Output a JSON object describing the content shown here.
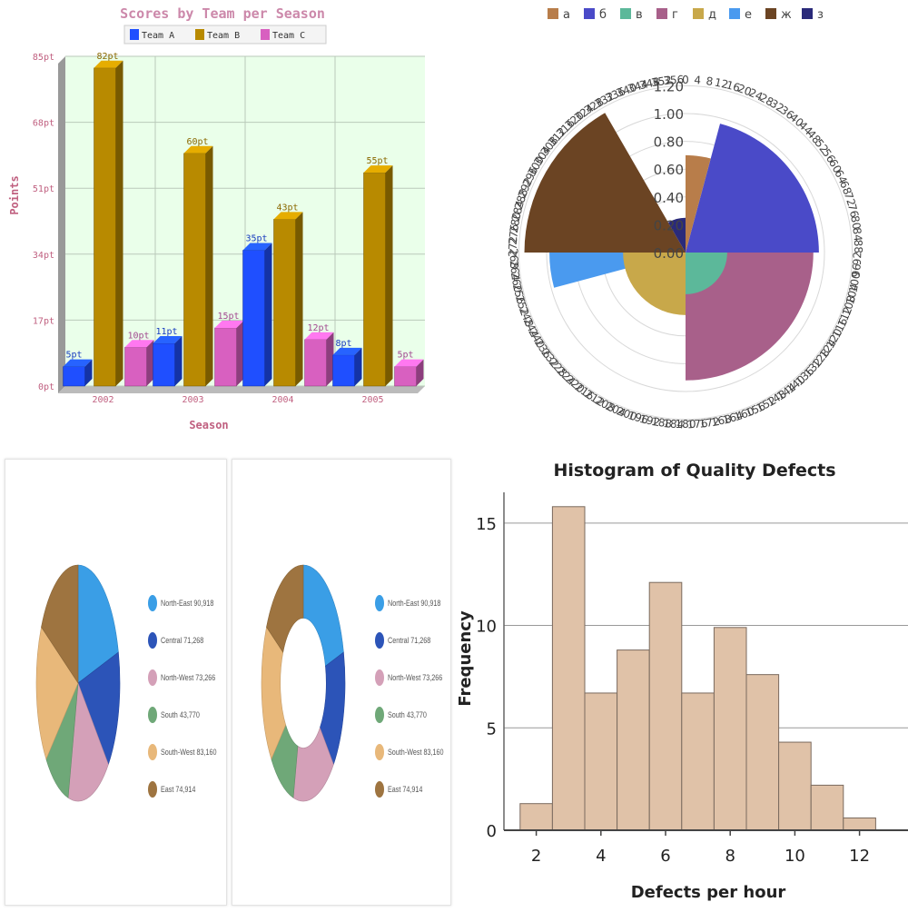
{
  "chart_data": [
    {
      "type": "bar",
      "title": "Scores by Team per Season",
      "xlabel": "Season",
      "ylabel": "Points",
      "categories": [
        "2002",
        "2003",
        "2004",
        "2005"
      ],
      "series": [
        {
          "name": "Team A",
          "color": "#1f4fff",
          "values": [
            5,
            11,
            35,
            8
          ],
          "labels": [
            "5pt",
            "11pt",
            "35pt",
            "8pt"
          ]
        },
        {
          "name": "Team B",
          "color": "#b88a00",
          "values": [
            82,
            60,
            43,
            55
          ],
          "labels": [
            "82pt",
            "60pt",
            "43pt",
            "55pt"
          ]
        },
        {
          "name": "Team C",
          "color": "#d860c0",
          "values": [
            10,
            15,
            12,
            5
          ],
          "labels": [
            "10pt",
            "15pt",
            "12pt",
            "5pt"
          ]
        }
      ],
      "ylim": [
        0,
        85
      ],
      "yticks": [
        {
          "value": 0,
          "label": "0pt"
        },
        {
          "value": 17,
          "label": "17pt"
        },
        {
          "value": 34,
          "label": "34pt"
        },
        {
          "value": 51,
          "label": "51pt"
        },
        {
          "value": 68,
          "label": "68pt"
        },
        {
          "value": 85,
          "label": "85pt"
        }
      ],
      "grid": true,
      "background": "#eaffea",
      "legend_position": "top"
    },
    {
      "type": "polar-bar",
      "title": "",
      "categories": [
        "а",
        "б",
        "в",
        "г",
        "д",
        "е",
        "ж",
        "з"
      ],
      "series": [
        {
          "name": "а",
          "color": "#b87d4a",
          "start_deg": 0,
          "end_deg": 15,
          "r": 0.7
        },
        {
          "name": "б",
          "color": "#4a4ac8",
          "start_deg": 15,
          "end_deg": 90,
          "r": 0.96
        },
        {
          "name": "в",
          "color": "#5cb89a",
          "start_deg": 90,
          "end_deg": 180,
          "r": 0.3
        },
        {
          "name": "г",
          "color": "#a8608a",
          "start_deg": 90,
          "end_deg": 180,
          "r": 0.92
        },
        {
          "name": "д",
          "color": "#c8a84a",
          "start_deg": 180,
          "end_deg": 270,
          "r": 0.45
        },
        {
          "name": "е",
          "color": "#4a9aef",
          "start_deg": 255,
          "end_deg": 270,
          "r": 0.98
        },
        {
          "name": "ж",
          "color": "#6b4423",
          "start_deg": 270,
          "end_deg": 330,
          "r": 1.16
        },
        {
          "name": "з",
          "color": "#2a2a7a",
          "start_deg": 330,
          "end_deg": 360,
          "r": 0.25
        }
      ],
      "radial_ticks": [
        "0.00",
        "0.20",
        "0.40",
        "0.60",
        "0.80",
        "1.00",
        "1.20"
      ],
      "angular_ticks_step_deg": 4,
      "legend_position": "top"
    },
    {
      "type": "pie",
      "title": "",
      "labels": [
        "North-East 90,918",
        "Central 71,268",
        "North-West 73,266",
        "South 43,770",
        "South-West 83,160",
        "East 74,914"
      ],
      "values": [
        90918,
        71268,
        73266,
        43770,
        83160,
        74914
      ],
      "colors": [
        "#3a9ee6",
        "#2c54b8",
        "#d4a0b8",
        "#6fa878",
        "#e8b87a",
        "#9e7440"
      ],
      "legend_position": "right"
    },
    {
      "type": "pie",
      "subtype": "donut",
      "title": "",
      "labels": [
        "North-East 90,918",
        "Central 71,268",
        "North-West 73,266",
        "South 43,770",
        "South-West 83,160",
        "East 74,914"
      ],
      "values": [
        90918,
        71268,
        73266,
        43770,
        83160,
        74914
      ],
      "colors": [
        "#3a9ee6",
        "#2c54b8",
        "#d4a0b8",
        "#6fa878",
        "#e8b87a",
        "#9e7440"
      ],
      "legend_position": "right"
    },
    {
      "type": "bar",
      "subtype": "histogram",
      "title": "Histogram of Quality Defects",
      "xlabel": "Defects per hour",
      "ylabel": "Frequency",
      "bin_edges": [
        1.5,
        2.5,
        3.5,
        4.5,
        5.5,
        6.5,
        7.5,
        8.5,
        9.5,
        10.5,
        11.5,
        12.5
      ],
      "values": [
        1.3,
        15.8,
        6.7,
        8.8,
        12.1,
        6.7,
        9.9,
        7.6,
        4.3,
        2.2,
        0.6
      ],
      "color": "#e0c2a8",
      "xticks": [
        2,
        4,
        6,
        8,
        10,
        12
      ],
      "yticks": [
        0,
        5,
        10,
        15
      ],
      "xlim": [
        1,
        13.5
      ],
      "ylim": [
        0,
        16.5
      ],
      "grid": true
    }
  ]
}
